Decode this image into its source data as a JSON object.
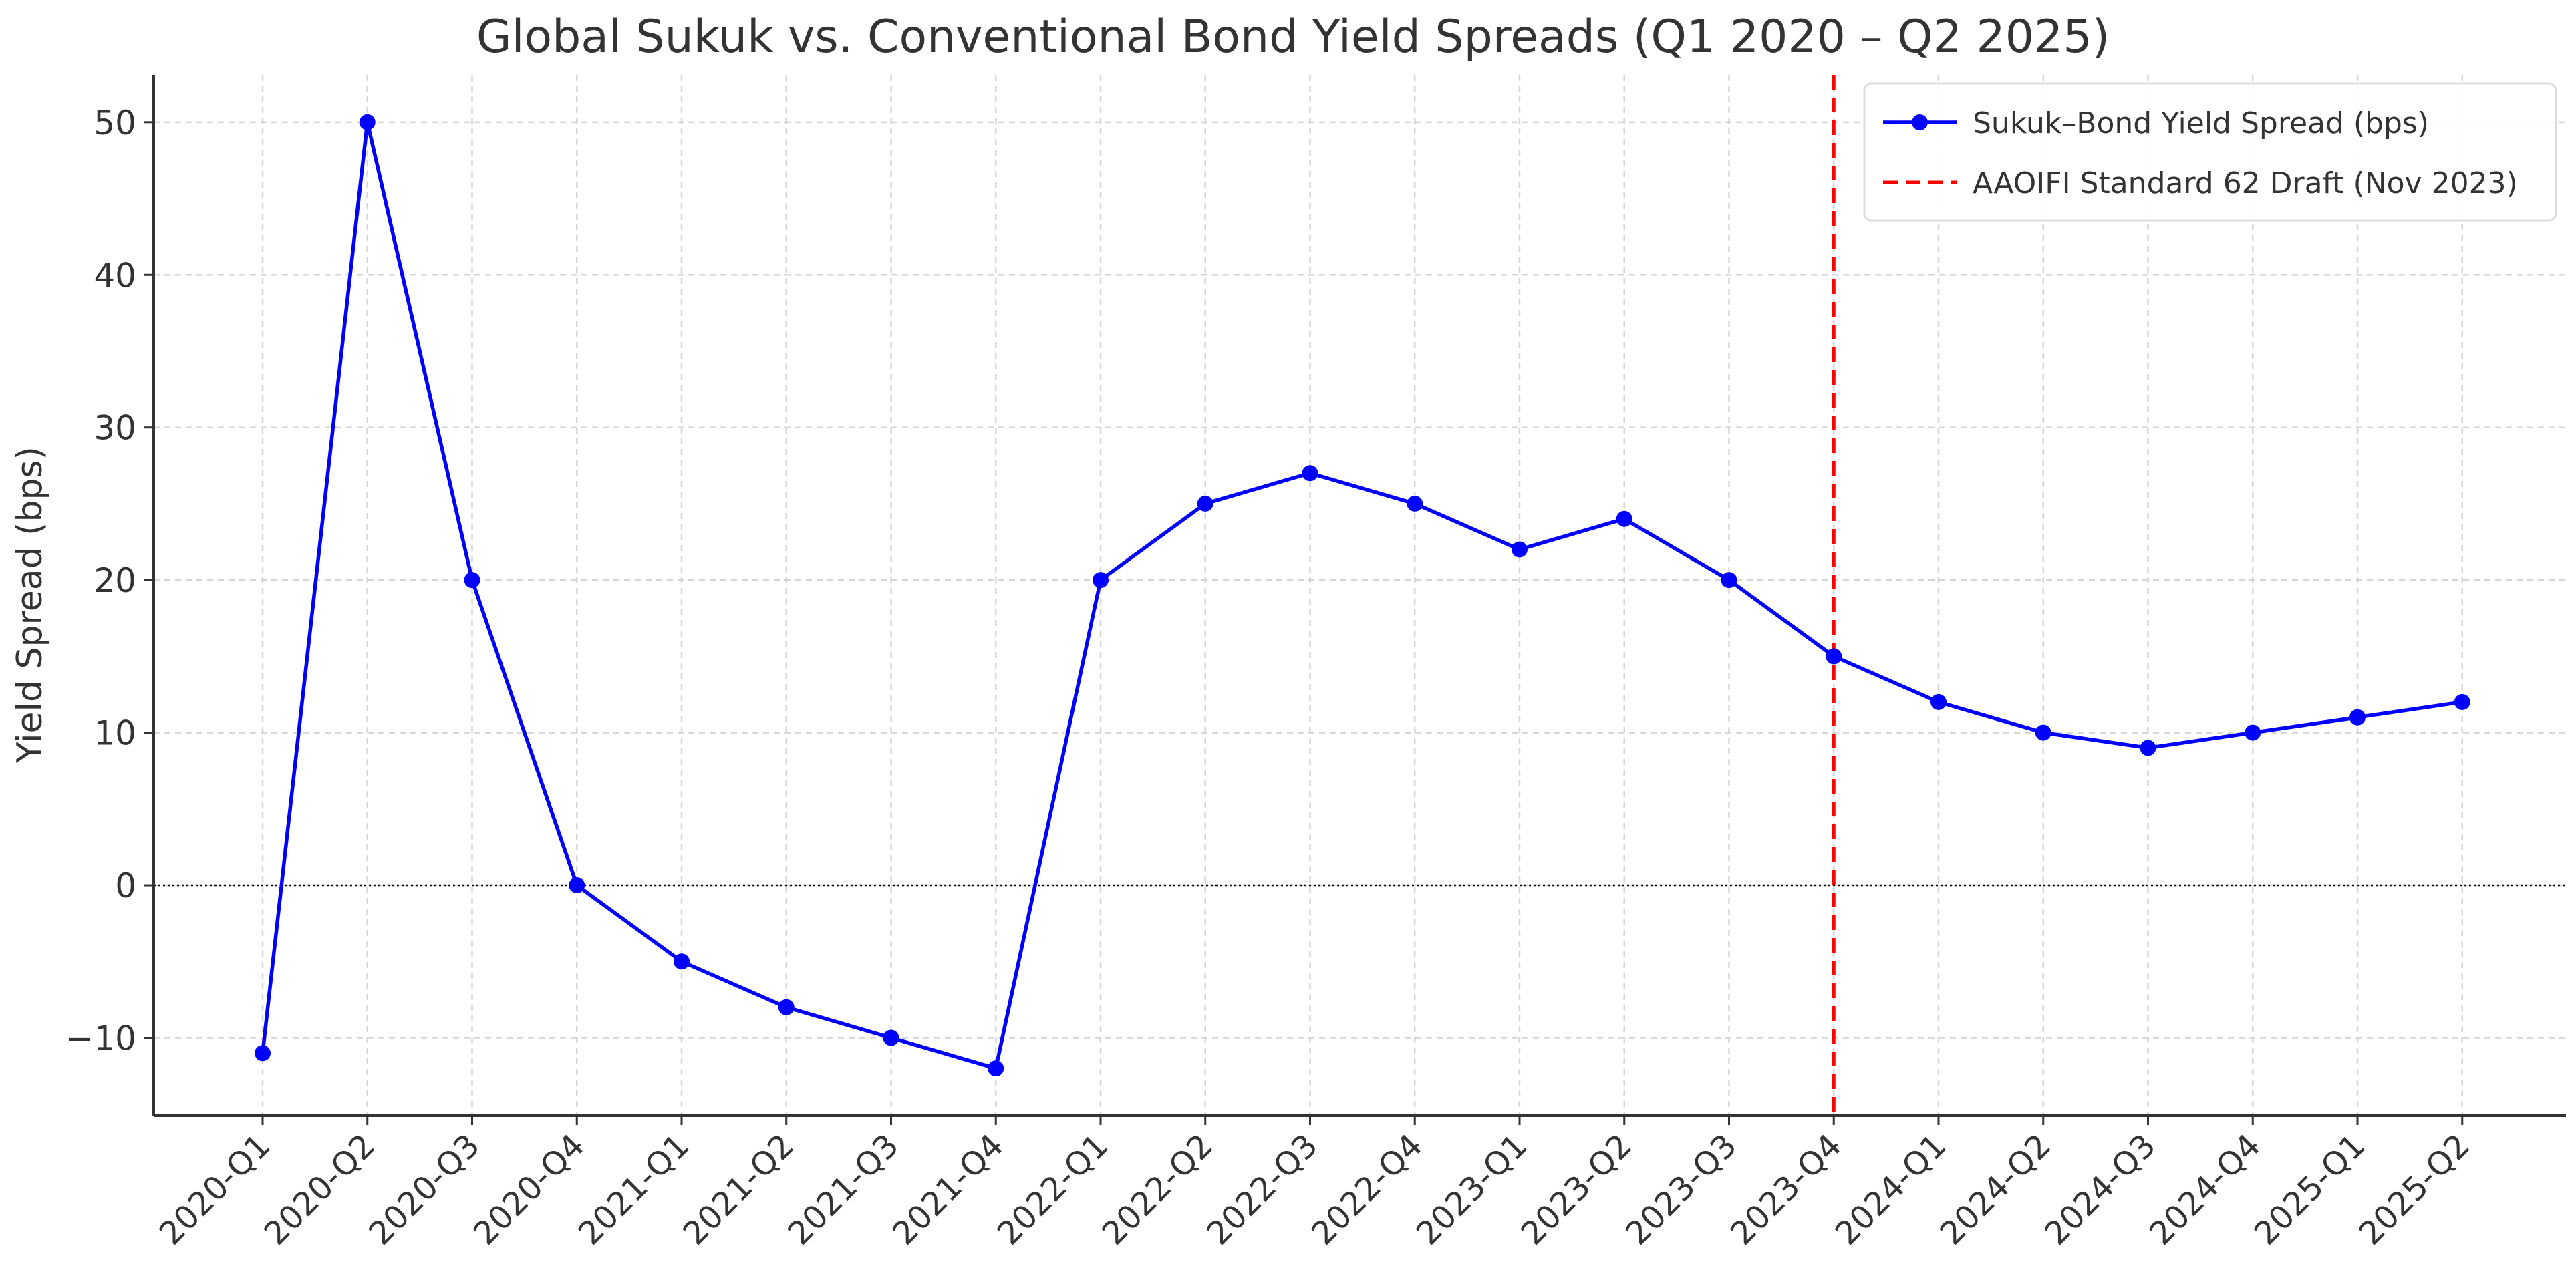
{
  "chart_data": {
    "type": "line",
    "title": "Global Sukuk vs. Conventional Bond Yield Spreads (Q1 2020 – Q2 2025)",
    "xlabel": "",
    "ylabel": "Yield Spread (bps)",
    "categories": [
      "2020-Q1",
      "2020-Q2",
      "2020-Q3",
      "2020-Q4",
      "2021-Q1",
      "2021-Q2",
      "2021-Q3",
      "2021-Q4",
      "2022-Q1",
      "2022-Q2",
      "2022-Q3",
      "2022-Q4",
      "2023-Q1",
      "2023-Q2",
      "2023-Q3",
      "2023-Q4",
      "2024-Q1",
      "2024-Q2",
      "2024-Q3",
      "2024-Q4",
      "2025-Q1",
      "2025-Q2"
    ],
    "series": [
      {
        "name": "Sukuk–Bond Yield Spread (bps)",
        "color": "#0000ff",
        "marker": "circle",
        "values": [
          -11,
          50,
          20,
          0,
          -5,
          -8,
          -10,
          -12,
          20,
          25,
          27,
          25,
          22,
          24,
          20,
          15,
          12,
          10,
          9,
          10,
          11,
          12
        ]
      }
    ],
    "reference_lines": [
      {
        "name": "AAOIFI Standard 62 Draft (Nov 2023)",
        "orientation": "vertical",
        "at_category": "2023-Q4",
        "color": "#ff0000",
        "style": "dashed"
      },
      {
        "orientation": "horizontal",
        "at_value": 0,
        "color": "#000000",
        "style": "dotted"
      }
    ],
    "ylim": [
      -15.1,
      53.1
    ],
    "yticks": [
      -10,
      0,
      10,
      20,
      30,
      40,
      50
    ],
    "ytick_labels": [
      "−10",
      "0",
      "10",
      "20",
      "30",
      "40",
      "50"
    ],
    "grid": true,
    "legend_position": "top-right"
  }
}
